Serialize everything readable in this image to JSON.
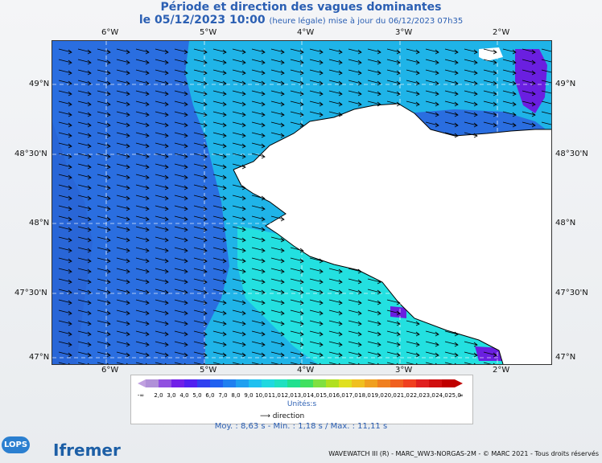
{
  "header": {
    "title": "Période et direction des vagues dominantes",
    "date": "le 05/12/2023 10:00",
    "subtitle": "(heure légale) mise à jour du 06/12/2023 07h35"
  },
  "map": {
    "lon_labels": [
      "6°W",
      "5°W",
      "4°W",
      "3°W",
      "2°W"
    ],
    "lat_labels": [
      "49°N",
      "48°30'N",
      "48°N",
      "47°30'N",
      "47°N"
    ],
    "colors": {
      "offshore": "#2a6ee0",
      "coastal": "#1fb4e8",
      "inner": "#23e0e0",
      "bay": "#6a1fe0",
      "land": "#ffffff"
    }
  },
  "legend": {
    "ticks": [
      "2,0",
      "3,0",
      "4,0",
      "5,0",
      "6,0",
      "7,0",
      "8,0",
      "9,0",
      "10,0",
      "11,0",
      "12,0",
      "13,0",
      "14,0",
      "15,0",
      "16,0",
      "17,0",
      "18,0",
      "19,0",
      "20,0",
      "21,0",
      "22,0",
      "23,0",
      "24,0",
      "25,0"
    ],
    "left_end": "-∞",
    "right_end": "∞",
    "colors": [
      "#b090d8",
      "#9050e0",
      "#7020e8",
      "#5020f0",
      "#3040f0",
      "#2060f0",
      "#2080f0",
      "#20a0f0",
      "#20c0f0",
      "#20d8e0",
      "#20e0c0",
      "#20e090",
      "#40e060",
      "#80e040",
      "#b0e020",
      "#e0e020",
      "#f0c020",
      "#f0a020",
      "#f08020",
      "#f06020",
      "#f04020",
      "#e02020",
      "#d01010",
      "#c00000"
    ],
    "unit": "Unités:s",
    "direction_label": "direction"
  },
  "stats": "Moy. : 8,63 s   -   Min. : 1,18 s / Max. : 11,11 s",
  "credit": "WAVEWATCH III (R) - MARC_WW3-NORGAS-2M - © MARC 2021 - Tous droits réservés",
  "brand": "Ifremer",
  "lops": "LOPS"
}
